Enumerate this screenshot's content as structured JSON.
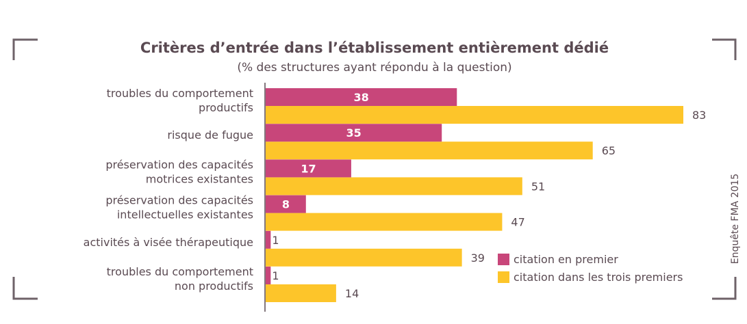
{
  "colors": {
    "first": "#c8467a",
    "top_three": "#fdc52a",
    "text": "#5a4a52",
    "corner": "#6e6268"
  },
  "chart_data": {
    "type": "bar",
    "orientation": "horizontal",
    "title": "Critères d’entrée dans l’établissement entièrement dédié",
    "subtitle": "(% des structures ayant répondu à la question)",
    "categories": [
      [
        "troubles du comportement",
        "productifs"
      ],
      [
        "risque de fugue"
      ],
      [
        "préservation des capacités",
        "motrices existantes"
      ],
      [
        "préservation des capacités",
        "intellectuelles existantes"
      ],
      [
        "activités à visée thérapeutique"
      ],
      [
        "troubles du comportement",
        "non productifs"
      ]
    ],
    "series": [
      {
        "name": "citation en premier",
        "values": [
          38,
          35,
          17,
          8,
          1,
          1
        ]
      },
      {
        "name": "citation dans les trois premiers",
        "values": [
          83,
          65,
          51,
          47,
          39,
          14
        ]
      }
    ],
    "xlim": [
      0,
      83
    ],
    "grid": false,
    "legend": "bottom-right",
    "source": "Enquête FMA 2015"
  }
}
